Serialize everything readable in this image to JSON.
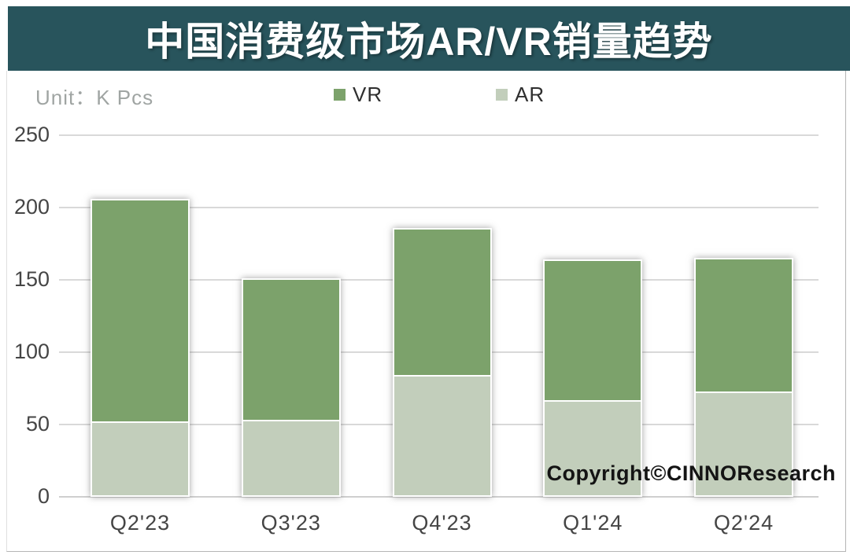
{
  "title": {
    "text": "中国消费级市场AR/VR销量趋势"
  },
  "unit_label": "Unit：K Pcs",
  "copyright": "Copyright©CINNOResearch",
  "colors": {
    "title_bar_bg": "#28545C",
    "title_text": "#FFFFFF",
    "vr": "#7CA26B",
    "ar": "#C2CEBB",
    "gridline": "#D9D9D9",
    "axis_text": "#454545",
    "unit_text": "#A0A5A3",
    "copyright_text": "#141414"
  },
  "chart_data": {
    "type": "bar",
    "stacked": true,
    "title": "中国消费级市场AR/VR销量趋势",
    "unit": "K Pcs",
    "categories": [
      "Q2'23",
      "Q3'23",
      "Q4'23",
      "Q1'24",
      "Q2'24"
    ],
    "series": [
      {
        "name": "VR",
        "color": "#7CA26B",
        "values": [
          155,
          99,
          103,
          98,
          93
        ]
      },
      {
        "name": "AR",
        "color": "#C2CEBB",
        "values": [
          51,
          52,
          83,
          66,
          72
        ]
      }
    ],
    "totals": [
      206,
      151,
      186,
      164,
      165
    ],
    "ylabel": "K Pcs",
    "ylim": [
      0,
      250
    ],
    "yticks": [
      0,
      50,
      100,
      150,
      200,
      250
    ],
    "grid": "horizontal",
    "legend_position": "top",
    "stack_order_bottom_to_top": [
      "AR",
      "VR"
    ]
  }
}
